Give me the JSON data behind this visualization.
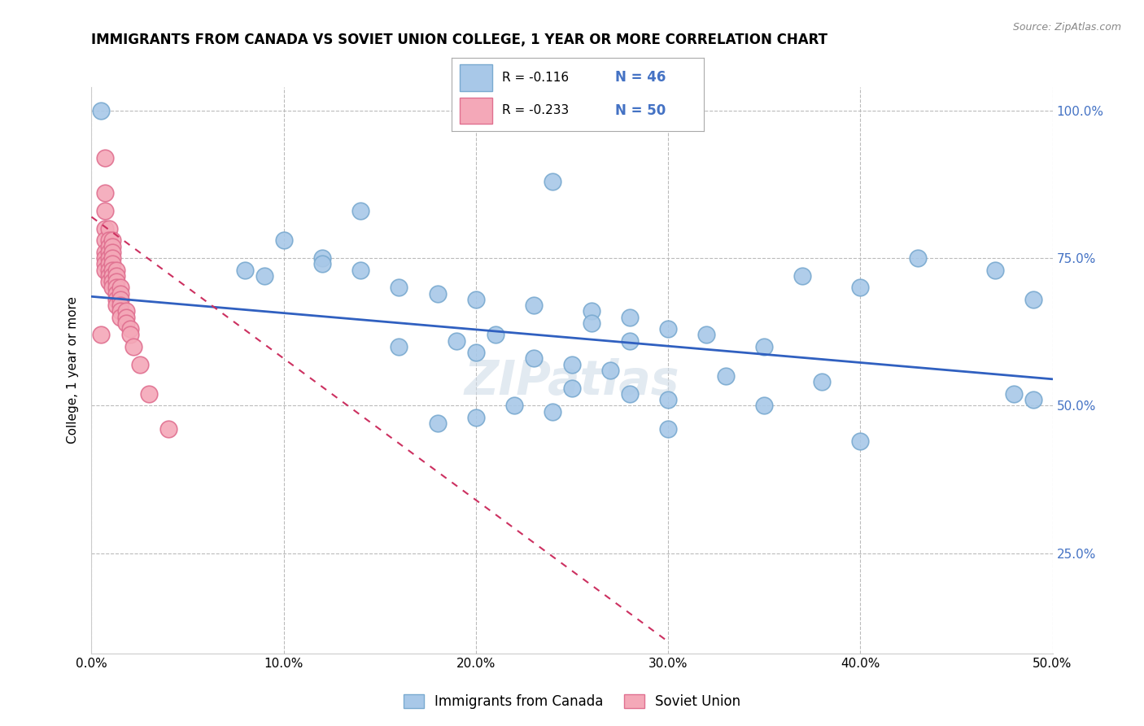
{
  "title": "IMMIGRANTS FROM CANADA VS SOVIET UNION COLLEGE, 1 YEAR OR MORE CORRELATION CHART",
  "source": "Source: ZipAtlas.com",
  "ylabel": "College, 1 year or more",
  "xlim": [
    0,
    0.5
  ],
  "ylim": [
    0.08,
    1.04
  ],
  "xtick_vals": [
    0.0,
    0.1,
    0.2,
    0.3,
    0.4,
    0.5
  ],
  "xtick_labels": [
    "0.0%",
    "10.0%",
    "20.0%",
    "30.0%",
    "40.0%",
    "50.0%"
  ],
  "ytick_vals": [
    0.25,
    0.5,
    0.75,
    1.0
  ],
  "ytick_labels": [
    "25.0%",
    "50.0%",
    "75.0%",
    "100.0%"
  ],
  "legend_r_canada": "-0.116",
  "legend_n_canada": "46",
  "legend_r_soviet": "-0.233",
  "legend_n_soviet": "50",
  "canada_color": "#a8c8e8",
  "soviet_color": "#f4a8b8",
  "canada_edge_color": "#7aaad0",
  "soviet_edge_color": "#e07090",
  "canada_trend_color": "#3060c0",
  "soviet_trend_color": "#cc3060",
  "canada_x": [
    0.005,
    0.24,
    0.14,
    0.1,
    0.12,
    0.12,
    0.14,
    0.08,
    0.09,
    0.16,
    0.18,
    0.2,
    0.23,
    0.26,
    0.28,
    0.26,
    0.3,
    0.32,
    0.28,
    0.35,
    0.37,
    0.4,
    0.43,
    0.47,
    0.49,
    0.21,
    0.19,
    0.16,
    0.2,
    0.23,
    0.25,
    0.27,
    0.33,
    0.38,
    0.25,
    0.28,
    0.3,
    0.35,
    0.22,
    0.24,
    0.2,
    0.18,
    0.3,
    0.4,
    0.48,
    0.49
  ],
  "canada_y": [
    1.0,
    0.88,
    0.83,
    0.78,
    0.75,
    0.74,
    0.73,
    0.73,
    0.72,
    0.7,
    0.69,
    0.68,
    0.67,
    0.66,
    0.65,
    0.64,
    0.63,
    0.62,
    0.61,
    0.6,
    0.72,
    0.7,
    0.75,
    0.73,
    0.68,
    0.62,
    0.61,
    0.6,
    0.59,
    0.58,
    0.57,
    0.56,
    0.55,
    0.54,
    0.53,
    0.52,
    0.51,
    0.5,
    0.5,
    0.49,
    0.48,
    0.47,
    0.46,
    0.44,
    0.52,
    0.51
  ],
  "soviet_x": [
    0.007,
    0.007,
    0.007,
    0.007,
    0.007,
    0.007,
    0.007,
    0.007,
    0.007,
    0.009,
    0.009,
    0.009,
    0.009,
    0.009,
    0.009,
    0.009,
    0.009,
    0.009,
    0.011,
    0.011,
    0.011,
    0.011,
    0.011,
    0.011,
    0.011,
    0.011,
    0.011,
    0.013,
    0.013,
    0.013,
    0.013,
    0.013,
    0.013,
    0.013,
    0.015,
    0.015,
    0.015,
    0.015,
    0.015,
    0.015,
    0.018,
    0.018,
    0.018,
    0.02,
    0.02,
    0.022,
    0.025,
    0.03,
    0.04,
    0.005
  ],
  "soviet_y": [
    0.92,
    0.86,
    0.83,
    0.8,
    0.78,
    0.76,
    0.75,
    0.74,
    0.73,
    0.8,
    0.78,
    0.77,
    0.76,
    0.75,
    0.74,
    0.73,
    0.72,
    0.71,
    0.78,
    0.77,
    0.76,
    0.75,
    0.74,
    0.73,
    0.72,
    0.71,
    0.7,
    0.73,
    0.72,
    0.71,
    0.7,
    0.69,
    0.68,
    0.67,
    0.7,
    0.69,
    0.68,
    0.67,
    0.66,
    0.65,
    0.66,
    0.65,
    0.64,
    0.63,
    0.62,
    0.6,
    0.57,
    0.52,
    0.46,
    0.62
  ],
  "canada_trend_x0": 0.0,
  "canada_trend_x1": 0.5,
  "canada_trend_y0": 0.685,
  "canada_trend_y1": 0.545,
  "soviet_trend_x0": 0.0,
  "soviet_trend_x1": 0.3,
  "soviet_trend_y0": 0.82,
  "soviet_trend_y1": 0.1,
  "background_color": "#ffffff",
  "grid_color": "#bbbbbb"
}
